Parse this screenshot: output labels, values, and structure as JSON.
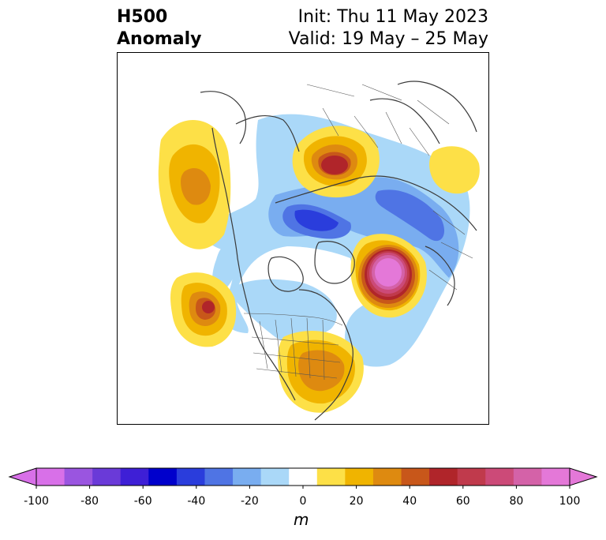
{
  "title": {
    "left_line1": "H500",
    "left_line2": "Anomaly",
    "right_line1": "Init: Thu 11 May 2023",
    "right_line2": "Valid: 19 May – 25 May"
  },
  "colorbar": {
    "units": "m",
    "tick_labels": [
      "-100",
      "-80",
      "-60",
      "-40",
      "-20",
      "0",
      "20",
      "40",
      "60",
      "80",
      "100"
    ],
    "levels": [
      -100,
      -90,
      -80,
      -70,
      -60,
      -50,
      -40,
      -30,
      -20,
      -10,
      10,
      20,
      30,
      40,
      50,
      60,
      70,
      80,
      90,
      100
    ],
    "colors": [
      "#d870e8",
      "#9a55e0",
      "#6a3ad8",
      "#3e1fd6",
      "#0000cc",
      "#2a3ddc",
      "#4f74e4",
      "#79adf0",
      "#aad8f8",
      "#ffffff",
      "#fde047",
      "#f0b400",
      "#de8a10",
      "#c8571a",
      "#b0252a",
      "#c03a4c",
      "#cc4a78",
      "#d462a8",
      "#e478d8"
    ],
    "extend_low_color": "#d870e8",
    "extend_high_color": "#e478d8"
  },
  "map": {
    "projection": "north-polar-stereographic",
    "region": "Northern Hemisphere",
    "features": [
      "positive anomaly over western Canada",
      "positive anomaly over northeast Pacific",
      "strong positive anomaly over north Atlantic",
      "positive anomaly over eastern United States",
      "positive anomaly over northern Eurasia",
      "negative anomaly over arctic and Greenland",
      "negative anomaly over northern Asia"
    ]
  }
}
